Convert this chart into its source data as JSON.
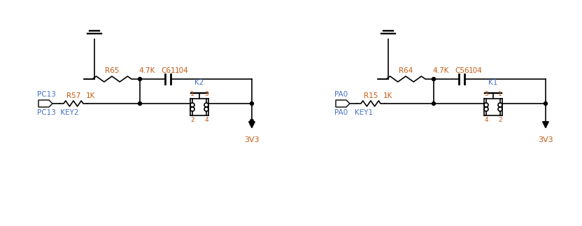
{
  "fig_width": 8.32,
  "fig_height": 3.23,
  "dpi": 100,
  "bg_color": "#ffffff",
  "line_color": "#000000",
  "text_color_blue": "#4472c4",
  "text_color_orange": "#c55a11",
  "text_color_black": "#000000",
  "circuit1": {
    "label_pin": "PC13",
    "label_key": "KEY2",
    "resistor1_label": "R57",
    "resistor1_val": "1K",
    "resistor2_label": "R65",
    "resistor2_val": "4.7K",
    "cap_label": "C61",
    "cap_val": "104",
    "switch_label": "K2",
    "vcc_label": "3V3"
  },
  "circuit2": {
    "label_pin": "PA0",
    "label_key": "KEY1",
    "resistor1_label": "R15",
    "resistor1_val": "1K",
    "resistor2_label": "R64",
    "resistor2_val": "4.7K",
    "cap_label": "C56",
    "cap_val": "104",
    "switch_label": "K1",
    "vcc_label": "3V3"
  }
}
